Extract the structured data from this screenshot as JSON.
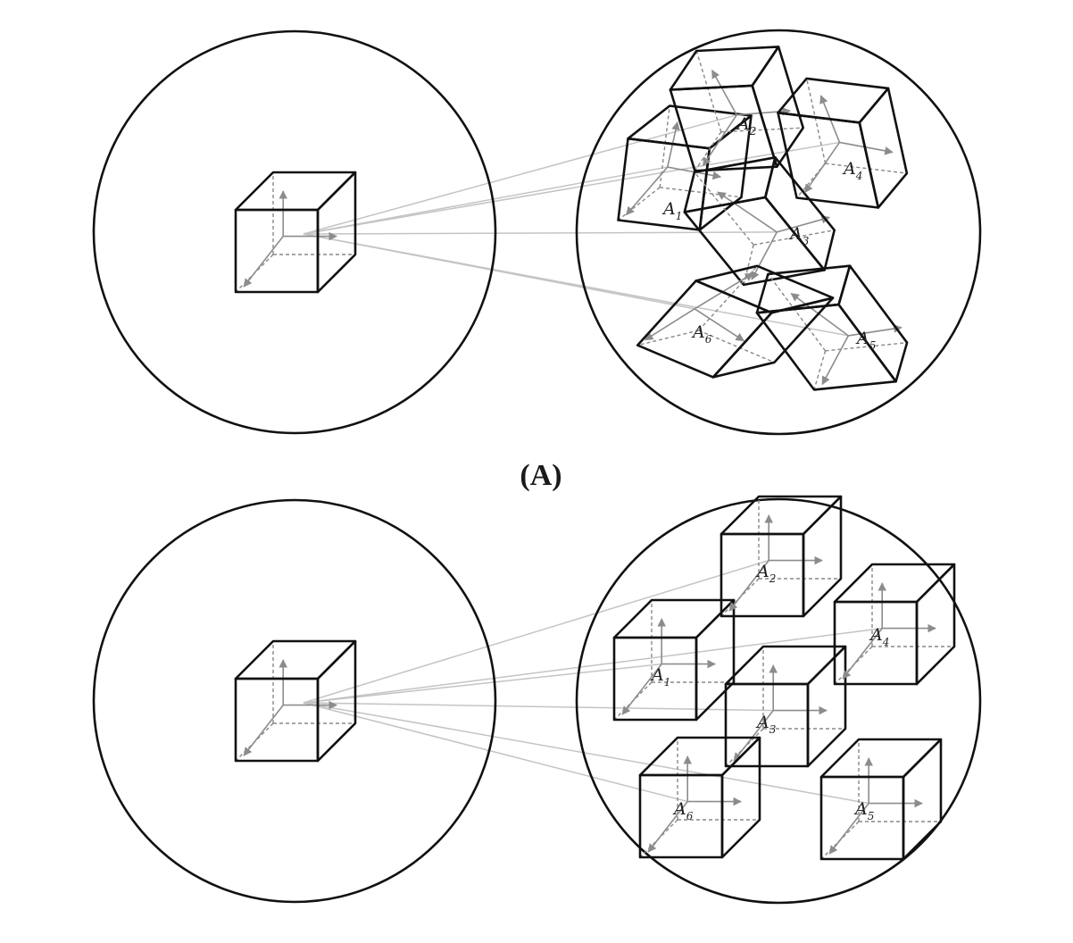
{
  "figure": {
    "panel_a_label": "(A)",
    "panels": [
      {
        "id": "panel-a",
        "transform": "affine-distorted",
        "targets": [
          {
            "base": "A",
            "sub": "1"
          },
          {
            "base": "A",
            "sub": "2"
          },
          {
            "base": "A",
            "sub": "3"
          },
          {
            "base": "A",
            "sub": "4"
          },
          {
            "base": "A",
            "sub": "5"
          },
          {
            "base": "A",
            "sub": "6"
          }
        ]
      },
      {
        "id": "panel-b",
        "transform": "translation-only",
        "targets": [
          {
            "base": "A",
            "sub": "1"
          },
          {
            "base": "A",
            "sub": "2"
          },
          {
            "base": "A",
            "sub": "3"
          },
          {
            "base": "A",
            "sub": "4"
          },
          {
            "base": "A",
            "sub": "5"
          },
          {
            "base": "A",
            "sub": "6"
          }
        ]
      }
    ]
  }
}
